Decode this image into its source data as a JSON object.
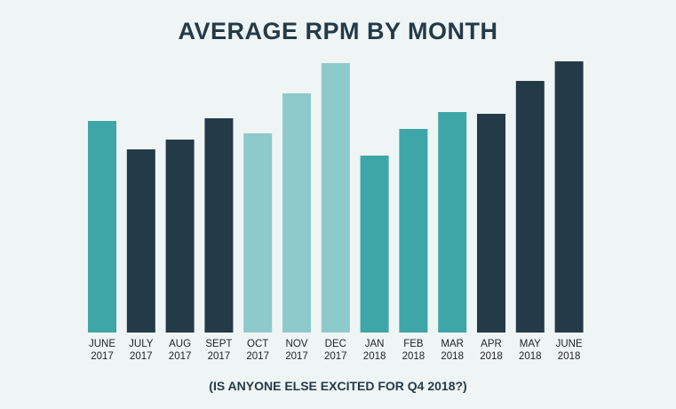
{
  "chart_data": {
    "type": "bar",
    "title": "AVERAGE RPM BY MONTH",
    "subtitle": "(IS ANYONE ELSE EXCITED FOR Q4 2018?)",
    "xlabel": "",
    "ylabel": "",
    "y_axis_shown": false,
    "grid": false,
    "categories": [
      [
        "JUNE",
        "2017"
      ],
      [
        "JULY",
        "2017"
      ],
      [
        "AUG",
        "2017"
      ],
      [
        "SEPT",
        "2017"
      ],
      [
        "OCT",
        "2017"
      ],
      [
        "NOV",
        "2017"
      ],
      [
        "DEC",
        "2017"
      ],
      [
        "JAN",
        "2018"
      ],
      [
        "FEB",
        "2018"
      ],
      [
        "MAR",
        "2018"
      ],
      [
        "APR",
        "2018"
      ],
      [
        "MAY",
        "2018"
      ],
      [
        "JUNE",
        "2018"
      ]
    ],
    "values_relative": [
      238,
      206,
      217,
      241,
      224,
      269,
      303,
      199,
      229,
      248,
      246,
      283,
      305
    ],
    "bar_colors": [
      "#3fa6a8",
      "#243a48",
      "#243a48",
      "#243a48",
      "#8ec9cb",
      "#8ec9cb",
      "#8ec9cb",
      "#3fa6a8",
      "#3fa6a8",
      "#3fa6a8",
      "#243a48",
      "#243a48",
      "#243a48"
    ]
  }
}
